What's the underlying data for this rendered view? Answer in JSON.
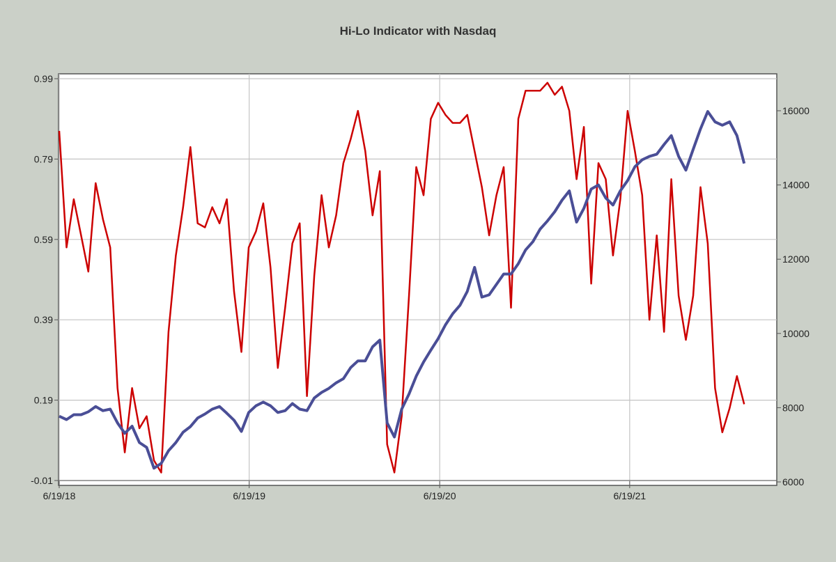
{
  "chart_data": {
    "type": "line",
    "title": "Hi-Lo Indicator with Nasdaq",
    "x_start": "2018-06-19",
    "x_step_days": 14,
    "x_ticks": [
      "6/19/18",
      "6/19/19",
      "6/19/20",
      "6/19/21"
    ],
    "x_tick_days": [
      0,
      365,
      731,
      1096
    ],
    "x_range_days": [
      0,
      1400
    ],
    "y_left": {
      "ticks": [
        "0.99",
        "0.79",
        "0.59",
        "0.39",
        "0.19",
        "-0.01"
      ],
      "range": [
        -0.01,
        0.99
      ]
    },
    "y_right": {
      "ticks": [
        "16000",
        "14000",
        "12000",
        "10000",
        "8000",
        "6000"
      ],
      "range": [
        6000,
        16000
      ]
    },
    "grid": true,
    "series": [
      {
        "name": "Hi-Lo Indicator",
        "axis": "left",
        "color": "#cc0000",
        "values": [
          0.86,
          0.57,
          0.69,
          0.6,
          0.51,
          0.73,
          0.64,
          0.57,
          0.22,
          0.06,
          0.22,
          0.12,
          0.15,
          0.04,
          0.01,
          0.36,
          0.55,
          0.67,
          0.82,
          0.63,
          0.62,
          0.67,
          0.63,
          0.69,
          0.46,
          0.31,
          0.57,
          0.61,
          0.68,
          0.52,
          0.27,
          0.42,
          0.58,
          0.63,
          0.2,
          0.5,
          0.7,
          0.57,
          0.65,
          0.78,
          0.84,
          0.91,
          0.81,
          0.65,
          0.76,
          0.08,
          0.01,
          0.15,
          0.45,
          0.77,
          0.7,
          0.89,
          0.93,
          0.9,
          0.88,
          0.88,
          0.9,
          0.81,
          0.72,
          0.6,
          0.7,
          0.77,
          0.42,
          0.89,
          0.96,
          0.96,
          0.96,
          0.98,
          0.95,
          0.97,
          0.91,
          0.74,
          0.87,
          0.48,
          0.78,
          0.74,
          0.55,
          0.69,
          0.91,
          0.81,
          0.7,
          0.39,
          0.6,
          0.36,
          0.74,
          0.45,
          0.34,
          0.45,
          0.72,
          0.58,
          0.22,
          0.11,
          0.17,
          0.25,
          0.18
        ]
      },
      {
        "name": "Nasdaq",
        "axis": "right",
        "color": "#4a4e96",
        "values": [
          7770,
          7680,
          7810,
          7810,
          7890,
          8030,
          7920,
          7960,
          7590,
          7310,
          7500,
          7060,
          6930,
          6370,
          6500,
          6840,
          7060,
          7340,
          7490,
          7720,
          7830,
          7960,
          8030,
          7850,
          7660,
          7360,
          7870,
          8050,
          8150,
          8050,
          7870,
          7920,
          8110,
          7960,
          7920,
          8260,
          8410,
          8520,
          8670,
          8780,
          9080,
          9260,
          9260,
          9640,
          9820,
          7590,
          7210,
          7960,
          8370,
          8850,
          9230,
          9550,
          9860,
          10230,
          10530,
          10760,
          11130,
          11780,
          10980,
          11040,
          11320,
          11600,
          11600,
          11880,
          12250,
          12470,
          12810,
          13030,
          13280,
          13590,
          13840,
          13000,
          13370,
          13890,
          14000,
          13650,
          13460,
          13840,
          14120,
          14490,
          14680,
          14770,
          14830,
          15090,
          15330,
          14770,
          14400,
          14960,
          15510,
          15980,
          15700,
          15610,
          15700,
          15330,
          14580
        ]
      }
    ]
  }
}
